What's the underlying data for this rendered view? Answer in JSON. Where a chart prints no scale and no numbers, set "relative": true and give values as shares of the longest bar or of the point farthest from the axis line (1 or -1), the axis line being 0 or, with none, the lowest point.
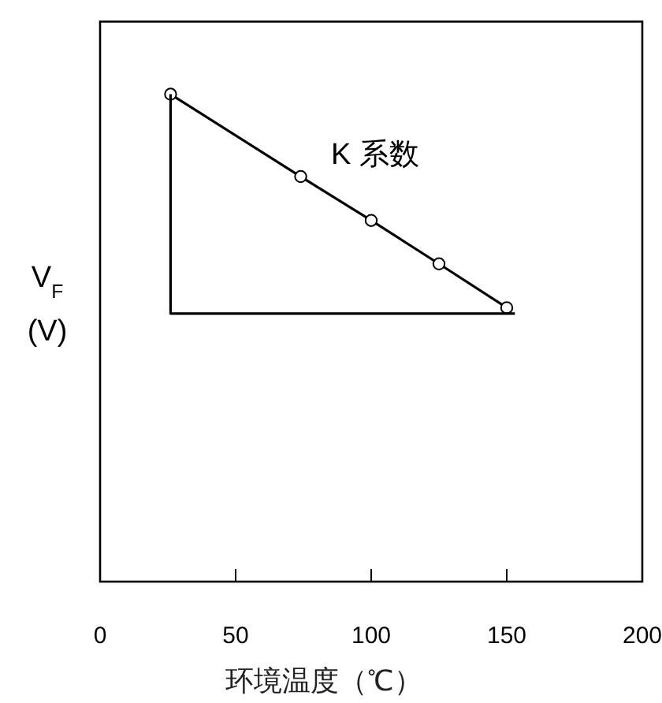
{
  "chart_data": {
    "type": "line",
    "relative": true,
    "xlabel": "环境温度（℃）",
    "ylabel": "V$_{F}$\n(V)",
    "xlim": [
      0,
      200
    ],
    "xticks": [
      0,
      50,
      100,
      150,
      200
    ],
    "tick_labels": "x",
    "series": [
      {
        "color": "#000000",
        "x": [
          26,
          74,
          100,
          125,
          150
        ],
        "values": [
          1,
          0.831,
          0.741,
          0.652,
          0.562
        ],
        "marker": "circle"
      },
      {
        "color": "#000000",
        "x": [
          26,
          26,
          153
        ],
        "values": [
          1,
          0.55,
          0.55
        ],
        "marker": "none"
      }
    ],
    "annotations": [
      "K 系数"
    ]
  }
}
